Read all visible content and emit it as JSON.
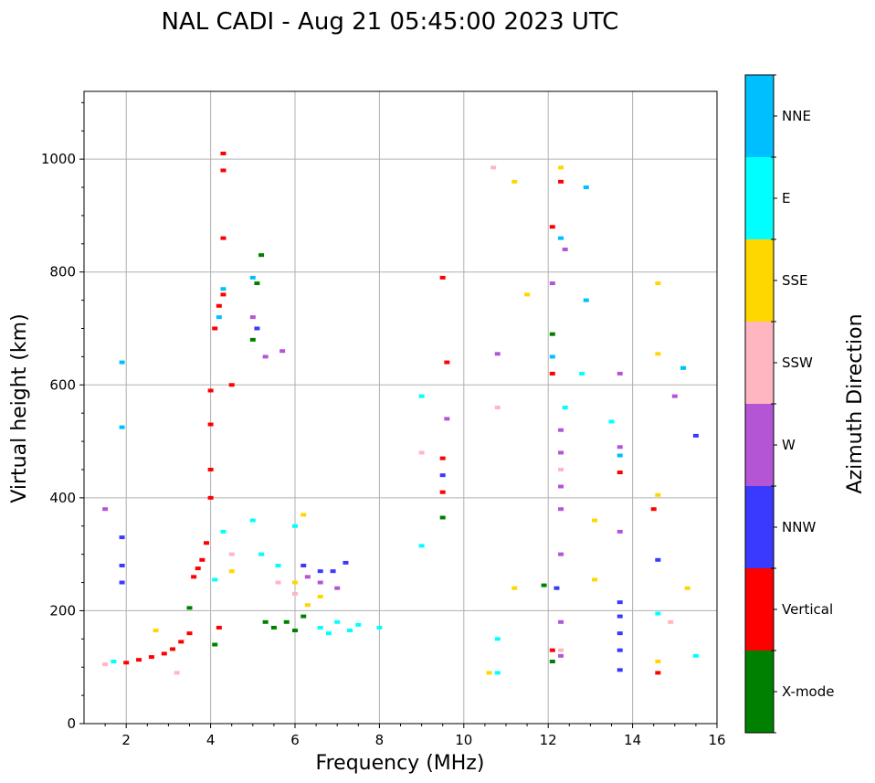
{
  "chart_data": {
    "type": "scatter",
    "title": "NAL CADI - Aug 21 05:45:00 2023 UTC",
    "xlabel": "Frequency (MHz)",
    "ylabel": "Virtual height (km)",
    "xlim": [
      1,
      16
    ],
    "ylim": [
      0,
      1120
    ],
    "xticks": [
      2,
      4,
      6,
      8,
      10,
      12,
      14,
      16
    ],
    "yticks": [
      0,
      200,
      400,
      600,
      800,
      1000
    ],
    "grid": true,
    "colorbar": {
      "label": "Azimuth Direction",
      "categories": [
        {
          "name": "X-mode",
          "color": "#008000"
        },
        {
          "name": "Vertical",
          "color": "#ff0000"
        },
        {
          "name": "NNW",
          "color": "#3a3aff"
        },
        {
          "name": "W",
          "color": "#b455d6"
        },
        {
          "name": "SSW",
          "color": "#ffb6c1"
        },
        {
          "name": "SSE",
          "color": "#ffd700"
        },
        {
          "name": "E",
          "color": "#00ffff"
        },
        {
          "name": "NNE",
          "color": "#00bfff"
        }
      ]
    },
    "series": [
      {
        "name": "Vertical",
        "points": [
          [
            2,
            108
          ],
          [
            2.3,
            113
          ],
          [
            2.6,
            118
          ],
          [
            2.9,
            124
          ],
          [
            3.1,
            132
          ],
          [
            3.3,
            145
          ],
          [
            3.5,
            160
          ],
          [
            3.6,
            260
          ],
          [
            3.7,
            275
          ],
          [
            3.8,
            290
          ],
          [
            3.9,
            320
          ],
          [
            4.0,
            400
          ],
          [
            4.0,
            450
          ],
          [
            4.0,
            530
          ],
          [
            4.0,
            590
          ],
          [
            4.1,
            700
          ],
          [
            4.2,
            740
          ],
          [
            4.3,
            760
          ],
          [
            4.3,
            860
          ],
          [
            4.3,
            980
          ],
          [
            4.3,
            1010
          ],
          [
            4.5,
            600
          ],
          [
            4.2,
            170
          ],
          [
            9.5,
            470
          ],
          [
            9.5,
            410
          ],
          [
            9.6,
            640
          ],
          [
            9.5,
            790
          ],
          [
            12.1,
            130
          ],
          [
            12.1,
            620
          ],
          [
            12.1,
            880
          ],
          [
            12.3,
            960
          ],
          [
            13.7,
            445
          ],
          [
            14.5,
            380
          ],
          [
            14.6,
            90
          ]
        ]
      },
      {
        "name": "X-mode",
        "points": [
          [
            3.5,
            205
          ],
          [
            4.1,
            140
          ],
          [
            5.2,
            830
          ],
          [
            5.1,
            780
          ],
          [
            5.0,
            680
          ],
          [
            5.3,
            180
          ],
          [
            5.5,
            170
          ],
          [
            5.8,
            180
          ],
          [
            6.0,
            165
          ],
          [
            6.2,
            190
          ],
          [
            9.5,
            365
          ],
          [
            11.9,
            245
          ],
          [
            12.1,
            110
          ],
          [
            12.1,
            690
          ]
        ]
      },
      {
        "name": "NNW",
        "points": [
          [
            1.9,
            250
          ],
          [
            1.9,
            280
          ],
          [
            1.9,
            330
          ],
          [
            5.1,
            700
          ],
          [
            6.2,
            280
          ],
          [
            6.6,
            270
          ],
          [
            6.9,
            270
          ],
          [
            7.2,
            285
          ],
          [
            9.5,
            440
          ],
          [
            12.2,
            240
          ],
          [
            13.7,
            215
          ],
          [
            13.7,
            190
          ],
          [
            13.7,
            160
          ],
          [
            13.7,
            130
          ],
          [
            13.7,
            95
          ],
          [
            15.5,
            510
          ],
          [
            14.6,
            290
          ]
        ]
      },
      {
        "name": "W",
        "points": [
          [
            1.5,
            380
          ],
          [
            5.0,
            720
          ],
          [
            5.3,
            650
          ],
          [
            5.7,
            660
          ],
          [
            6.3,
            260
          ],
          [
            6.6,
            250
          ],
          [
            7.0,
            240
          ],
          [
            9.6,
            540
          ],
          [
            10.8,
            655
          ],
          [
            12.3,
            520
          ],
          [
            12.3,
            480
          ],
          [
            12.3,
            420
          ],
          [
            12.3,
            380
          ],
          [
            12.3,
            300
          ],
          [
            12.3,
            180
          ],
          [
            12.3,
            120
          ],
          [
            12.1,
            780
          ],
          [
            12.4,
            840
          ],
          [
            13.7,
            620
          ],
          [
            13.7,
            490
          ],
          [
            13.7,
            340
          ],
          [
            15.0,
            580
          ]
        ]
      },
      {
        "name": "SSW",
        "points": [
          [
            1.5,
            105
          ],
          [
            3.2,
            90
          ],
          [
            4.5,
            300
          ],
          [
            5.6,
            250
          ],
          [
            6.0,
            230
          ],
          [
            9.0,
            480
          ],
          [
            10.8,
            560
          ],
          [
            10.7,
            985
          ],
          [
            12.3,
            450
          ],
          [
            12.3,
            130
          ],
          [
            14.9,
            180
          ]
        ]
      },
      {
        "name": "SSE",
        "points": [
          [
            2.7,
            165
          ],
          [
            4.5,
            270
          ],
          [
            6.0,
            250
          ],
          [
            6.2,
            370
          ],
          [
            6.3,
            210
          ],
          [
            6.6,
            225
          ],
          [
            10.6,
            90
          ],
          [
            11.2,
            240
          ],
          [
            11.2,
            960
          ],
          [
            11.5,
            760
          ],
          [
            12.3,
            985
          ],
          [
            13.1,
            360
          ],
          [
            13.1,
            255
          ],
          [
            14.6,
            780
          ],
          [
            14.6,
            655
          ],
          [
            14.6,
            405
          ],
          [
            14.6,
            110
          ],
          [
            15.3,
            240
          ]
        ]
      },
      {
        "name": "E",
        "points": [
          [
            1.7,
            110
          ],
          [
            4.1,
            255
          ],
          [
            4.3,
            340
          ],
          [
            5.0,
            360
          ],
          [
            5.2,
            300
          ],
          [
            5.6,
            280
          ],
          [
            6.0,
            350
          ],
          [
            6.6,
            170
          ],
          [
            6.8,
            160
          ],
          [
            7.0,
            180
          ],
          [
            7.3,
            165
          ],
          [
            7.5,
            175
          ],
          [
            8.0,
            170
          ],
          [
            9.0,
            580
          ],
          [
            9.0,
            315
          ],
          [
            10.8,
            150
          ],
          [
            10.8,
            90
          ],
          [
            12.4,
            560
          ],
          [
            12.8,
            620
          ],
          [
            13.5,
            535
          ],
          [
            14.6,
            195
          ],
          [
            15.2,
            630
          ],
          [
            15.5,
            120
          ]
        ]
      },
      {
        "name": "NNE",
        "points": [
          [
            1.9,
            525
          ],
          [
            1.9,
            640
          ],
          [
            4.2,
            720
          ],
          [
            4.3,
            770
          ],
          [
            5.0,
            790
          ],
          [
            12.1,
            650
          ],
          [
            12.3,
            860
          ],
          [
            12.9,
            750
          ],
          [
            12.9,
            950
          ],
          [
            13.7,
            475
          ],
          [
            15.2,
            630
          ]
        ]
      }
    ]
  }
}
